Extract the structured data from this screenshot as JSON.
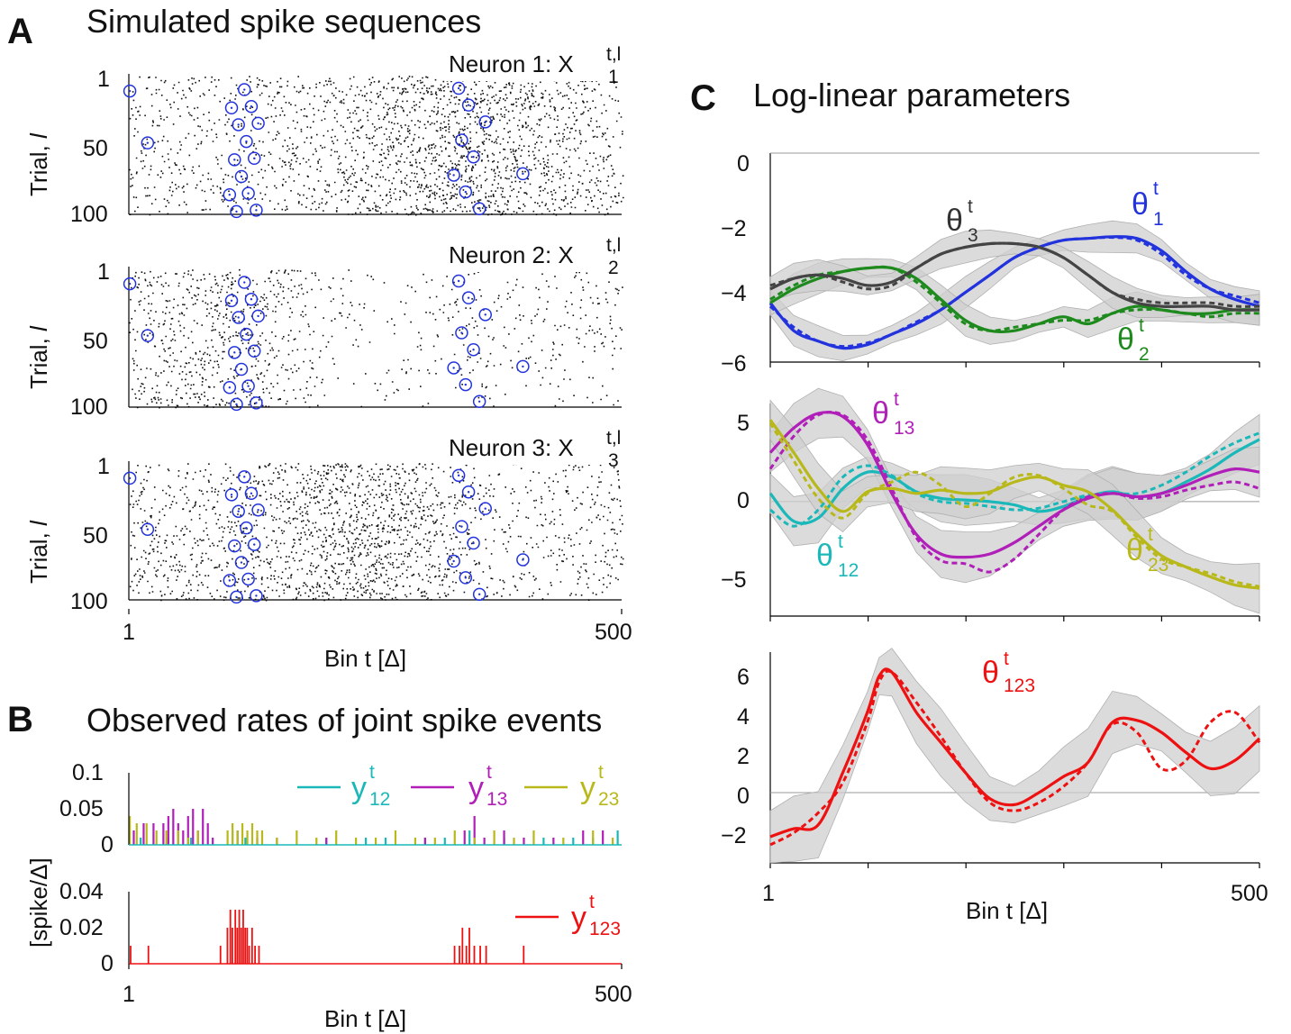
{
  "panels": {
    "A": {
      "letter": "A",
      "title": "Simulated spike sequences"
    },
    "B": {
      "letter": "B",
      "title": "Observed rates of joint spike events"
    },
    "C": {
      "letter": "C",
      "title": "Log-linear parameters"
    }
  },
  "raster": {
    "ylabel": "Trial, ",
    "ylabel_italic": "l",
    "xlabel": "Bin t [Δ]",
    "x_ticks": [
      "1",
      "500"
    ],
    "y_ticks": [
      "1",
      "50",
      "100"
    ],
    "neurons": [
      {
        "name": "Neuron 1: X",
        "sub": "1",
        "sup": "t,l"
      },
      {
        "name": "Neuron 2: X",
        "sub": "2",
        "sup": "t,l"
      },
      {
        "name": "Neuron 3: X",
        "sub": "3",
        "sup": "t,l"
      }
    ]
  },
  "rates": {
    "ylabel": "[spike/Δ]",
    "xlabel": "Bin t [Δ]",
    "x_ticks": [
      "1",
      "500"
    ],
    "top_y_ticks": [
      "0",
      "0.05",
      "0.1"
    ],
    "bottom_y_ticks": [
      "0",
      "0.02",
      "0.04"
    ],
    "legend_top": [
      {
        "base": "y",
        "sup": "t",
        "sub": "12",
        "color": "#1ab8b8"
      },
      {
        "base": "y",
        "sup": "t",
        "sub": "13",
        "color": "#b01fb8"
      },
      {
        "base": "y",
        "sup": "t",
        "sub": "23",
        "color": "#b8b81a"
      }
    ],
    "legend_bottom": [
      {
        "base": "y",
        "sup": "t",
        "sub": "123",
        "color": "#ee1111"
      }
    ]
  },
  "params": {
    "xlabel": "Bin t [Δ]",
    "x_ticks": [
      "1",
      "500"
    ],
    "top_y_ticks": [
      "0",
      "−2",
      "−4",
      "−6"
    ],
    "mid_y_ticks": [
      "5",
      "0",
      "−5"
    ],
    "bottom_y_ticks": [
      "6",
      "4",
      "2",
      "0",
      "−2"
    ],
    "labels": [
      {
        "base": "θ",
        "sup": "t",
        "sub": "3",
        "color": "#333333"
      },
      {
        "base": "θ",
        "sup": "t",
        "sub": "1",
        "color": "#2233dd"
      },
      {
        "base": "θ",
        "sup": "t",
        "sub": "2",
        "color": "#1e8a1e"
      },
      {
        "base": "θ",
        "sup": "t",
        "sub": "13",
        "color": "#b01fb8"
      },
      {
        "base": "θ",
        "sup": "t",
        "sub": "12",
        "color": "#1ab8b8"
      },
      {
        "base": "θ",
        "sup": "t",
        "sub": "23",
        "color": "#b8b81a"
      },
      {
        "base": "θ",
        "sup": "t",
        "sub": "123",
        "color": "#ee1111"
      }
    ]
  },
  "chart_data": [
    {
      "type": "scatter",
      "panel": "A",
      "description_of_marks": "raster of spikes per trial; blue circles mark joint spike events",
      "x_range": [
        1,
        500
      ],
      "y_range": [
        1,
        100
      ],
      "joint_event_bins": [
        2,
        20,
        103,
        105,
        108,
        110,
        112,
        115,
        118,
        120,
        122,
        125,
        128,
        130,
        132,
        330,
        335,
        338,
        342,
        345,
        350,
        356,
        362,
        400
      ],
      "rate_profiles": [
        {
          "neuron": 1,
          "x": [
            1,
            50,
            100,
            150,
            200,
            250,
            300,
            350,
            400,
            450,
            500
          ],
          "rate": [
            0.04,
            0.05,
            0.04,
            0.05,
            0.06,
            0.09,
            0.12,
            0.13,
            0.1,
            0.08,
            0.05
          ]
        },
        {
          "neuron": 2,
          "x": [
            1,
            50,
            100,
            150,
            200,
            250,
            300,
            350,
            400,
            450,
            500
          ],
          "rate": [
            0.05,
            0.07,
            0.08,
            0.06,
            0.02,
            0.01,
            0.02,
            0.03,
            0.02,
            0.02,
            0.03
          ]
        },
        {
          "neuron": 3,
          "x": [
            1,
            50,
            100,
            150,
            200,
            250,
            300,
            350,
            400,
            450,
            500
          ],
          "rate": [
            0.05,
            0.06,
            0.06,
            0.08,
            0.12,
            0.13,
            0.09,
            0.04,
            0.03,
            0.04,
            0.05
          ]
        }
      ]
    },
    {
      "type": "bar",
      "panel": "B-top",
      "x_range": [
        1,
        500
      ],
      "ylim": [
        0,
        0.1
      ],
      "series": [
        {
          "name": "y12",
          "bins": [
            12,
            40,
            63,
            105,
            110,
            118,
            200,
            240,
            260,
            300,
            320,
            345,
            380,
            420,
            450,
            470,
            495
          ],
          "values": [
            0.01,
            0.01,
            0.01,
            0.02,
            0.02,
            0.01,
            0.01,
            0.01,
            0.01,
            0.01,
            0.01,
            0.02,
            0.01,
            0.01,
            0.01,
            0.01,
            0.02
          ]
        },
        {
          "name": "y13",
          "bins": [
            5,
            15,
            25,
            35,
            40,
            45,
            50,
            55,
            60,
            65,
            70,
            75,
            80,
            85,
            110,
            130,
            150,
            200,
            300,
            340,
            350,
            360,
            380,
            400,
            430,
            460,
            480
          ],
          "values": [
            0.02,
            0.03,
            0.03,
            0.03,
            0.04,
            0.05,
            0.03,
            0.02,
            0.04,
            0.05,
            0.02,
            0.05,
            0.03,
            0.01,
            0.02,
            0.01,
            0.01,
            0.01,
            0.01,
            0.02,
            0.04,
            0.01,
            0.02,
            0.01,
            0.01,
            0.02,
            0.02
          ]
        },
        {
          "name": "y23",
          "bins": [
            1,
            8,
            18,
            28,
            38,
            50,
            60,
            70,
            100,
            105,
            110,
            115,
            120,
            125,
            130,
            135,
            150,
            170,
            190,
            210,
            230,
            250,
            270,
            290,
            310,
            330,
            350,
            370,
            390,
            410,
            440,
            470,
            490
          ],
          "values": [
            0.04,
            0.03,
            0.03,
            0.02,
            0.02,
            0.02,
            0.01,
            0.02,
            0.02,
            0.03,
            0.02,
            0.03,
            0.02,
            0.03,
            0.02,
            0.02,
            0.01,
            0.02,
            0.01,
            0.02,
            0.01,
            0.01,
            0.02,
            0.01,
            0.01,
            0.02,
            0.01,
            0.02,
            0.01,
            0.02,
            0.01,
            0.02,
            0.01
          ]
        }
      ]
    },
    {
      "type": "bar",
      "panel": "B-bottom",
      "x_range": [
        1,
        500
      ],
      "ylim": [
        0,
        0.04
      ],
      "series": [
        {
          "name": "y123",
          "bins": [
            2,
            20,
            93,
            100,
            103,
            105,
            108,
            110,
            112,
            114,
            116,
            118,
            120,
            122,
            125,
            128,
            132,
            330,
            335,
            338,
            342,
            345,
            350,
            356,
            362,
            400
          ],
          "values": [
            0.01,
            0.01,
            0.01,
            0.02,
            0.03,
            0.02,
            0.03,
            0.02,
            0.03,
            0.02,
            0.03,
            0.02,
            0.02,
            0.01,
            0.02,
            0.01,
            0.01,
            0.01,
            0.01,
            0.02,
            0.01,
            0.02,
            0.01,
            0.01,
            0.01,
            0.01
          ]
        }
      ]
    },
    {
      "type": "line",
      "panel": "C-top",
      "x_range": [
        1,
        500
      ],
      "ylim": [
        -6,
        0
      ],
      "x": [
        1,
        25,
        50,
        75,
        100,
        125,
        150,
        175,
        200,
        225,
        250,
        275,
        300,
        325,
        350,
        375,
        400,
        425,
        450,
        475,
        500
      ],
      "series": [
        {
          "name": "theta1",
          "estimated": [
            -4.3,
            -5.1,
            -5.4,
            -5.6,
            -5.5,
            -5.2,
            -4.9,
            -4.5,
            -4.0,
            -3.5,
            -3.0,
            -2.7,
            -2.5,
            -2.45,
            -2.4,
            -2.45,
            -2.8,
            -3.4,
            -3.9,
            -4.2,
            -4.4
          ],
          "true": [
            -4.4,
            -5.0,
            -5.4,
            -5.55,
            -5.45,
            -5.2,
            -4.85,
            -4.5,
            -4.0,
            -3.5,
            -3.0,
            -2.7,
            -2.5,
            -2.45,
            -2.42,
            -2.5,
            -2.9,
            -3.5,
            -3.9,
            -4.1,
            -4.3
          ]
        },
        {
          "name": "theta2",
          "estimated": [
            -4.3,
            -3.9,
            -3.6,
            -3.4,
            -3.3,
            -3.3,
            -3.6,
            -4.2,
            -4.8,
            -5.1,
            -5.1,
            -4.9,
            -4.7,
            -4.9,
            -4.6,
            -4.4,
            -4.5,
            -4.6,
            -4.6,
            -4.5,
            -4.5
          ],
          "true": [
            -4.2,
            -3.8,
            -3.5,
            -3.4,
            -3.3,
            -3.3,
            -3.7,
            -4.3,
            -4.9,
            -5.1,
            -5.0,
            -4.9,
            -4.8,
            -4.8,
            -4.6,
            -4.5,
            -4.5,
            -4.6,
            -4.7,
            -4.6,
            -4.6
          ]
        },
        {
          "name": "theta3",
          "estimated": [
            -3.9,
            -3.6,
            -3.5,
            -3.6,
            -3.8,
            -3.7,
            -3.3,
            -2.9,
            -2.7,
            -2.6,
            -2.6,
            -2.7,
            -3.0,
            -3.5,
            -4.0,
            -4.3,
            -4.4,
            -4.4,
            -4.4,
            -4.5,
            -4.5
          ],
          "true": [
            -3.8,
            -3.6,
            -3.5,
            -3.7,
            -3.9,
            -3.8,
            -3.3,
            -2.9,
            -2.7,
            -2.6,
            -2.6,
            -2.7,
            -3.0,
            -3.5,
            -4.0,
            -4.2,
            -4.3,
            -4.3,
            -4.3,
            -4.4,
            -4.4
          ]
        }
      ]
    },
    {
      "type": "line",
      "panel": "C-mid",
      "x_range": [
        1,
        500
      ],
      "ylim": [
        -7,
        6
      ],
      "x": [
        1,
        25,
        50,
        75,
        100,
        125,
        150,
        175,
        200,
        225,
        250,
        275,
        300,
        325,
        350,
        375,
        400,
        425,
        450,
        475,
        500
      ],
      "series": [
        {
          "name": "theta12",
          "estimated": [
            0.5,
            -1.2,
            -1.0,
            0.8,
            1.8,
            1.5,
            0.6,
            0.2,
            0.1,
            0.0,
            -0.2,
            -0.6,
            -0.3,
            0.3,
            0.6,
            0.3,
            0.5,
            1.2,
            2.0,
            3.0,
            3.8
          ],
          "true": [
            -0.5,
            -1.5,
            -0.5,
            1.5,
            2.2,
            1.6,
            0.5,
            0.0,
            -0.1,
            -0.3,
            -0.5,
            -0.4,
            0.0,
            0.4,
            0.5,
            0.5,
            1.0,
            1.8,
            2.8,
            3.6,
            4.2
          ]
        },
        {
          "name": "theta13",
          "estimated": [
            3.0,
            4.5,
            5.4,
            5.2,
            3.5,
            0.5,
            -2.0,
            -3.2,
            -3.4,
            -3.2,
            -2.5,
            -1.5,
            -0.5,
            0.2,
            0.5,
            0.3,
            0.5,
            1.0,
            1.6,
            2.0,
            1.8
          ],
          "true": [
            2.0,
            4.0,
            5.3,
            5.3,
            3.8,
            0.8,
            -2.2,
            -3.6,
            -3.8,
            -4.3,
            -3.5,
            -2.0,
            -0.5,
            0.3,
            0.5,
            0.2,
            0.3,
            0.7,
            1.0,
            1.2,
            0.8
          ]
        },
        {
          "name": "theta23",
          "estimated": [
            5.0,
            3.0,
            0.8,
            -0.6,
            0.6,
            0.8,
            0.5,
            0.7,
            0.5,
            0.6,
            1.2,
            1.5,
            1.0,
            0.6,
            -0.5,
            -2.0,
            -3.3,
            -4.0,
            -4.6,
            -5.1,
            -5.3
          ],
          "true": [
            4.8,
            2.5,
            0.2,
            -1.0,
            0.5,
            1.2,
            1.8,
            1.0,
            -0.3,
            0.5,
            1.5,
            1.6,
            0.8,
            -0.2,
            -0.6,
            -2.2,
            -3.5,
            -4.0,
            -4.4,
            -4.9,
            -5.2
          ]
        }
      ]
    },
    {
      "type": "line",
      "panel": "C-bottom",
      "x_range": [
        1,
        500
      ],
      "ylim": [
        -3.5,
        7
      ],
      "x": [
        1,
        25,
        50,
        75,
        100,
        112,
        125,
        150,
        175,
        200,
        225,
        250,
        275,
        300,
        325,
        350,
        375,
        400,
        425,
        450,
        475,
        500
      ],
      "series": [
        {
          "name": "theta123",
          "estimated": [
            -2.2,
            -1.8,
            -1.6,
            1.0,
            4.0,
            5.8,
            6.0,
            4.0,
            2.5,
            1.0,
            -0.3,
            -0.6,
            0.0,
            0.8,
            1.5,
            3.5,
            3.6,
            3.0,
            2.0,
            1.2,
            1.6,
            2.7
          ],
          "true": [
            -2.6,
            -2.0,
            -1.0,
            0.5,
            3.5,
            5.5,
            6.0,
            4.5,
            2.8,
            1.0,
            -0.5,
            -0.9,
            -0.5,
            0.3,
            1.5,
            3.4,
            3.0,
            1.2,
            1.6,
            3.5,
            4.0,
            2.5
          ]
        }
      ]
    }
  ]
}
